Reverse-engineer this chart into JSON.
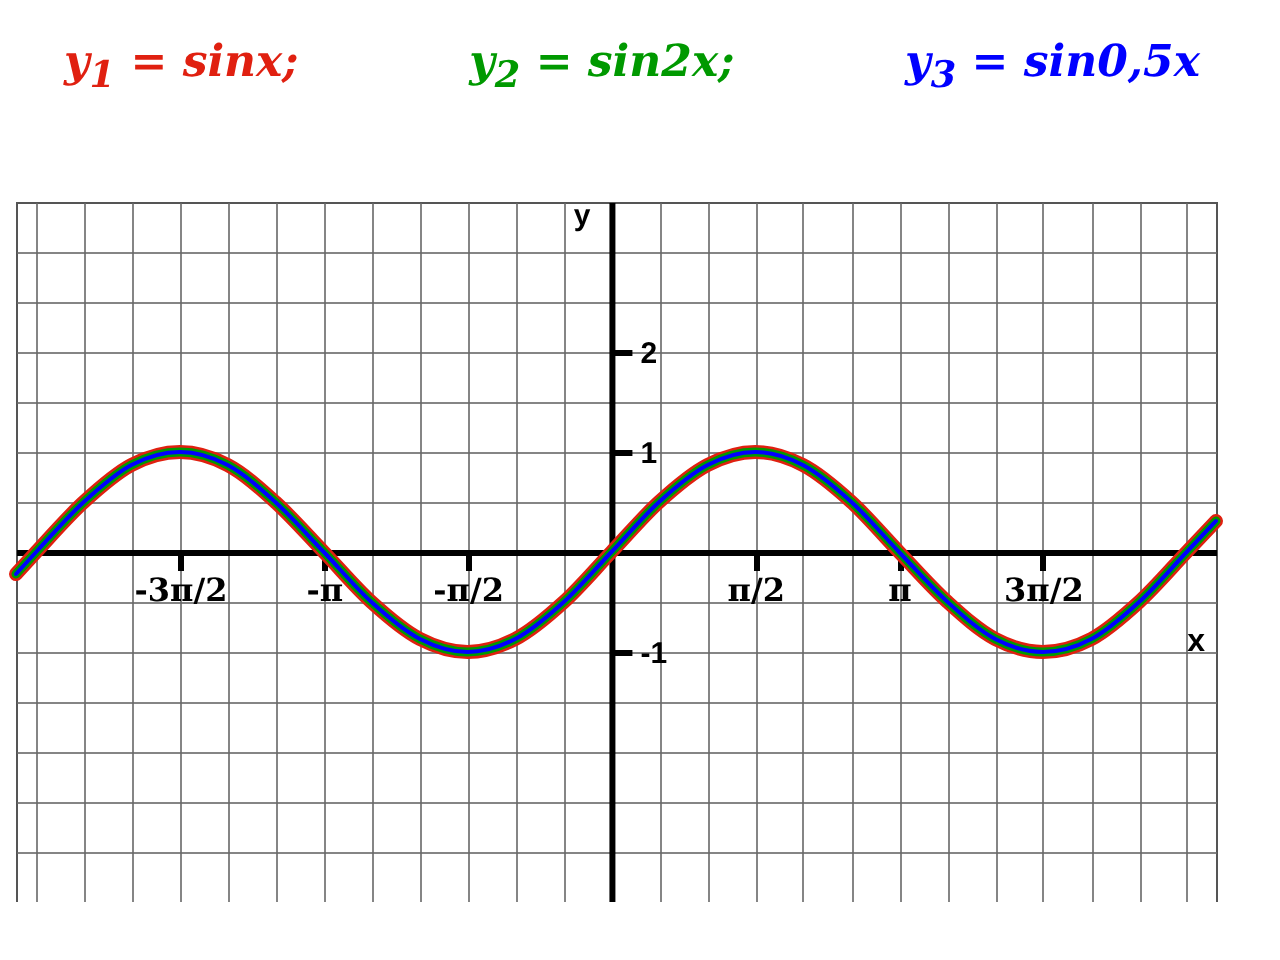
{
  "chart_data": {
    "type": "line",
    "xlabel": "x",
    "ylabel": "y",
    "legend": "top",
    "grid": true,
    "line_style": "solid",
    "marker": "none",
    "xlim": [
      -6.5,
      6.6
    ],
    "ylim": [
      -3.5,
      3.5
    ],
    "xticks": [
      {
        "value": -6.28,
        "label": null
      },
      {
        "value": -5.76,
        "label": null
      },
      {
        "value": -5.24,
        "label": null
      },
      {
        "value": -4.71,
        "label": "-3π/2"
      },
      {
        "value": -4.19,
        "label": null
      },
      {
        "value": -3.67,
        "label": null
      },
      {
        "value": -3.14,
        "label": "-π"
      },
      {
        "value": -2.62,
        "label": null
      },
      {
        "value": -2.09,
        "label": null
      },
      {
        "value": -1.57,
        "label": "-π/2"
      },
      {
        "value": -1.05,
        "label": null
      },
      {
        "value": -0.52,
        "label": null
      },
      {
        "value": 0,
        "label": null
      },
      {
        "value": 0.52,
        "label": null
      },
      {
        "value": 1.05,
        "label": null
      },
      {
        "value": 1.57,
        "label": "π/2"
      },
      {
        "value": 2.09,
        "label": null
      },
      {
        "value": 2.62,
        "label": null
      },
      {
        "value": 3.14,
        "label": "π"
      },
      {
        "value": 3.67,
        "label": null
      },
      {
        "value": 4.19,
        "label": null
      },
      {
        "value": 4.71,
        "label": "3π/2"
      },
      {
        "value": 5.24,
        "label": null
      },
      {
        "value": 5.76,
        "label": null
      },
      {
        "value": 6.28,
        "label": null
      }
    ],
    "yticks": [
      {
        "value": -3,
        "label": null
      },
      {
        "value": -2.5,
        "label": null
      },
      {
        "value": -2,
        "label": null
      },
      {
        "value": -1.5,
        "label": null
      },
      -1,
      {
        "value": -0.5,
        "label": null
      },
      {
        "value": 0,
        "label": null
      },
      {
        "value": 0.5,
        "label": null
      },
      1,
      {
        "value": 1.5,
        "label": null
      },
      2,
      {
        "value": 2.5,
        "label": null
      },
      {
        "value": 3,
        "label": null
      }
    ],
    "x": [
      -6.5,
      -6.28,
      -5.76,
      -5.24,
      -4.71,
      -4.19,
      -3.67,
      -3.14,
      -2.62,
      -2.09,
      -1.57,
      -1.05,
      -0.52,
      0,
      0.52,
      1.05,
      1.57,
      2.09,
      2.62,
      3.14,
      3.67,
      4.19,
      4.71,
      5.24,
      5.76,
      6.28,
      6.6
    ],
    "series": [
      {
        "name": "y$_{1}$ = sinx;",
        "color": "#e02010",
        "values": [
          -0.22,
          0,
          0.5,
          0.87,
          1,
          0.87,
          0.5,
          0,
          -0.5,
          -0.87,
          -1,
          -0.87,
          -0.5,
          0,
          0.5,
          0.87,
          1,
          0.87,
          0.5,
          0,
          -0.5,
          -0.87,
          -1,
          -0.87,
          -0.5,
          0,
          0.31
        ]
      },
      {
        "name": "y$_{2}$ = sin2x;",
        "color": "#009900",
        "values": [
          -0.22,
          0,
          0.5,
          0.87,
          1,
          0.87,
          0.5,
          0,
          -0.5,
          -0.87,
          -1,
          -0.87,
          -0.5,
          0,
          0.5,
          0.87,
          1,
          0.87,
          0.5,
          0,
          -0.5,
          -0.87,
          -1,
          -0.87,
          -0.5,
          0,
          0.31
        ]
      },
      {
        "name": "y$_{3}$ = sin0,5x",
        "color": "#0000ff",
        "values": [
          -0.22,
          0,
          0.5,
          0.87,
          1,
          0.87,
          0.5,
          0,
          -0.5,
          -0.87,
          -1,
          -0.87,
          -0.5,
          0,
          0.5,
          0.87,
          1,
          0.87,
          0.5,
          0,
          -0.5,
          -0.87,
          -1,
          -0.87,
          -0.5,
          0,
          0.31
        ]
      }
    ]
  }
}
